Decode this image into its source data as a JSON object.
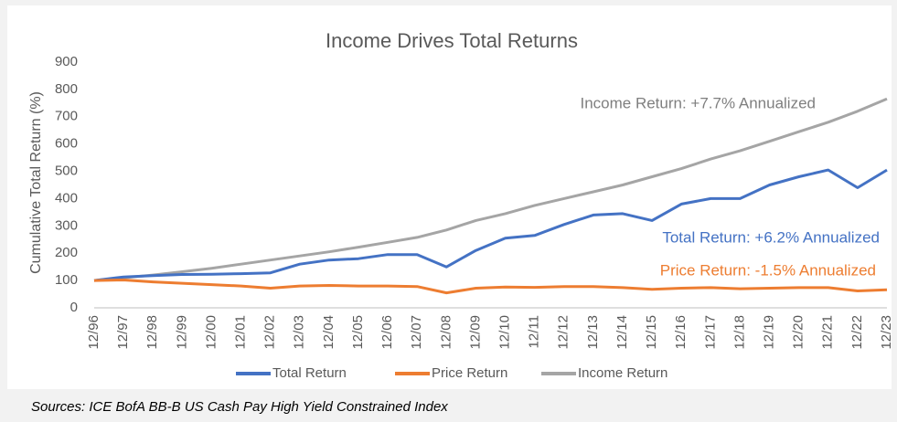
{
  "chart_data": {
    "type": "line",
    "title": "Income Drives Total Returns",
    "y_label": "Cumulative Total Return (%)",
    "categories": [
      "12/96",
      "12/97",
      "12/98",
      "12/99",
      "12/00",
      "12/01",
      "12/02",
      "12/03",
      "12/04",
      "12/05",
      "12/06",
      "12/07",
      "12/08",
      "12/09",
      "12/10",
      "12/11",
      "12/12",
      "12/13",
      "12/14",
      "12/15",
      "12/16",
      "12/17",
      "12/18",
      "12/19",
      "12/20",
      "12/21",
      "12/22",
      "12/23"
    ],
    "series": [
      {
        "name": "Total Return",
        "color": "#4472c4",
        "values": [
          100,
          113,
          118,
          122,
          123,
          125,
          128,
          160,
          175,
          180,
          195,
          195,
          150,
          210,
          255,
          265,
          305,
          340,
          345,
          320,
          380,
          400,
          400,
          450,
          480,
          505,
          440,
          505
        ]
      },
      {
        "name": "Price Return",
        "color": "#ed7d31",
        "values": [
          100,
          102,
          95,
          90,
          85,
          80,
          72,
          80,
          82,
          80,
          80,
          78,
          55,
          72,
          76,
          75,
          78,
          78,
          74,
          68,
          72,
          74,
          70,
          72,
          74,
          74,
          62,
          66
        ]
      },
      {
        "name": "Income Return",
        "color": "#a5a5a5",
        "values": [
          100,
          110,
          120,
          132,
          145,
          160,
          175,
          190,
          205,
          222,
          240,
          258,
          285,
          320,
          345,
          375,
          400,
          425,
          450,
          480,
          510,
          545,
          575,
          610,
          645,
          680,
          720,
          765
        ]
      }
    ],
    "annotations": [
      {
        "text": "Income Return: +7.7% Annualized",
        "color": "#7f7f7f"
      },
      {
        "text": "Total Return: +6.2% Annualized",
        "color": "#4472c4"
      },
      {
        "text": "Price Return: -1.5% Annualized",
        "color": "#ed7d31"
      }
    ],
    "ylim": [
      0,
      900
    ],
    "yticks": [
      0,
      100,
      200,
      300,
      400,
      500,
      600,
      700,
      800,
      900
    ],
    "grid": false,
    "legend": "bottom",
    "source": "Sources: ICE BofA BB-B US Cash Pay High Yield Constrained Index"
  }
}
